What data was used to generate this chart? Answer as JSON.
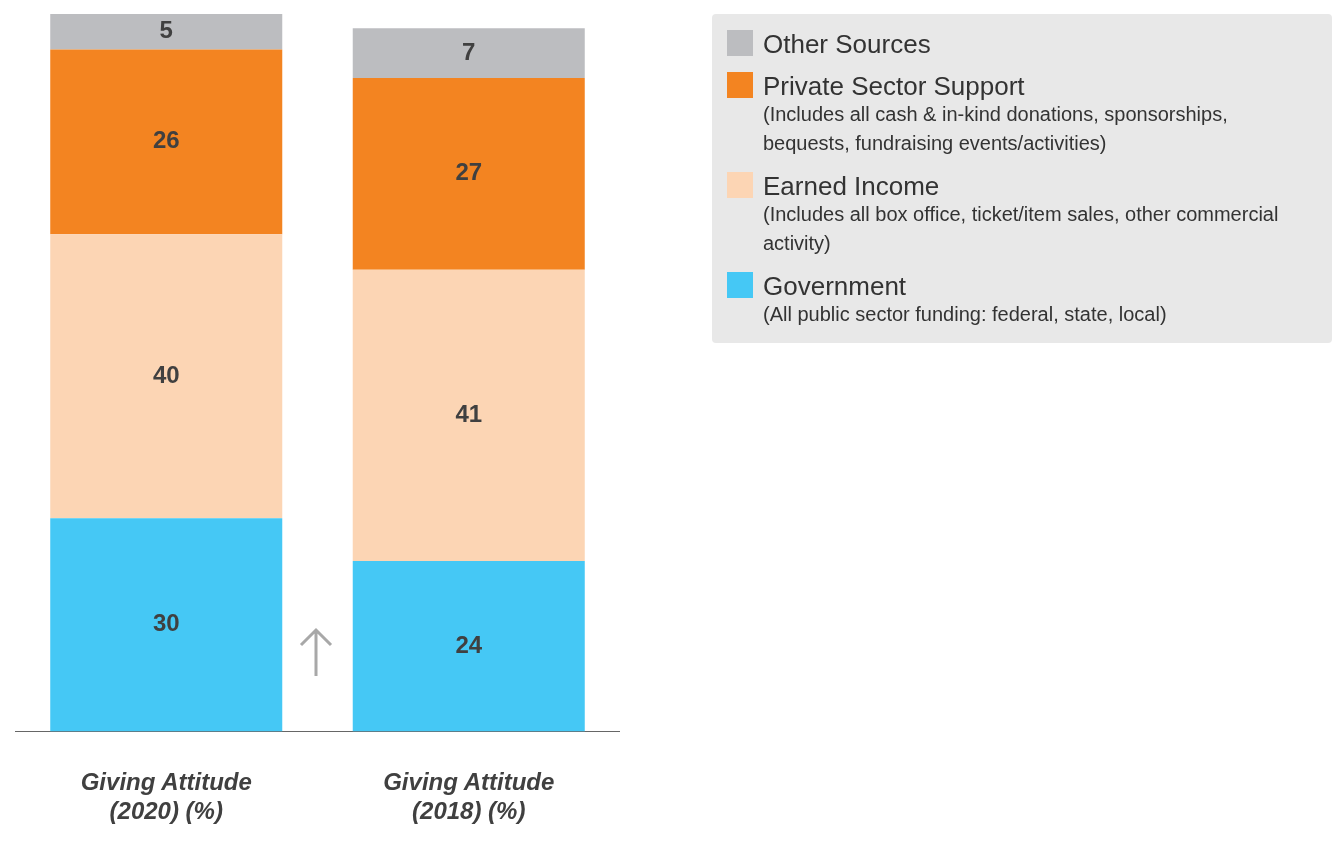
{
  "chart_data": {
    "type": "bar",
    "stacked": true,
    "categories": [
      "Giving Attitude\n(2020) (%)",
      "Giving Attitude\n(2018) (%)"
    ],
    "series": [
      {
        "name": "Government",
        "color": "#45c8f5",
        "values": [
          30,
          24
        ]
      },
      {
        "name": "Earned Income",
        "color": "#fcd5b4",
        "values": [
          40,
          41
        ]
      },
      {
        "name": "Private Sector Support",
        "color": "#f38421",
        "values": [
          26,
          27
        ]
      },
      {
        "name": "Other Sources",
        "color": "#bcbdc0",
        "values": [
          5,
          7
        ]
      }
    ],
    "data_labels": true,
    "legend": "top right",
    "grid": false,
    "annotations": [
      "(All public sector funding: federal, state, local)",
      "(Includes all box office, ticket/item sales, other commercial activity)",
      "(Includes all cash & in-kind donations, sponsorships, bequests, fundraising events/activities)"
    ]
  }
}
